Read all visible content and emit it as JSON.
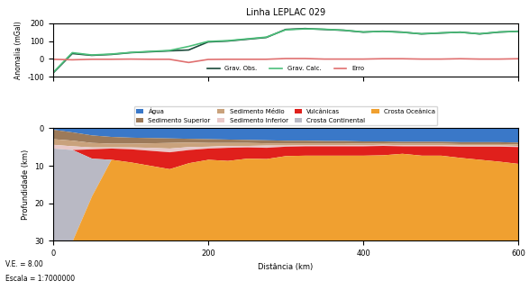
{
  "chart_data": [
    {
      "type": "line",
      "title": "Linha LEPLAC 029",
      "y_label": "Anomalia (mGal)",
      "x": [
        0,
        25,
        50,
        75,
        100,
        125,
        150,
        175,
        200,
        225,
        250,
        275,
        300,
        325,
        350,
        375,
        400,
        425,
        450,
        475,
        500,
        525,
        550,
        575,
        600
      ],
      "xlim": [
        0,
        600
      ],
      "xticks": [
        0,
        200,
        400,
        600
      ],
      "ylim": [
        -100,
        200
      ],
      "yticks": [
        -100,
        0,
        100,
        200
      ],
      "tick_labels": "y",
      "legend": "lower center",
      "series": [
        {
          "name": "Grav. Obs.",
          "color": "#1a4a3a",
          "values": [
            -80,
            30,
            20,
            25,
            35,
            40,
            45,
            50,
            95,
            100,
            110,
            120,
            165,
            170,
            165,
            160,
            150,
            155,
            150,
            140,
            145,
            150,
            140,
            150,
            155
          ]
        },
        {
          "name": "Grav. Calc.",
          "color": "#4cbf7a",
          "values": [
            -78,
            35,
            22,
            27,
            36,
            42,
            47,
            70,
            98,
            102,
            112,
            122,
            163,
            168,
            166,
            161,
            151,
            154,
            149,
            141,
            146,
            149,
            141,
            151,
            154
          ]
        },
        {
          "name": "Erro",
          "color": "#e07070",
          "values": [
            -2,
            -5,
            -2,
            -2,
            -1,
            -2,
            -2,
            -20,
            -3,
            -2,
            -2,
            -2,
            2,
            2,
            -1,
            -1,
            -1,
            1,
            1,
            -1,
            -1,
            1,
            -1,
            -1,
            1
          ]
        }
      ]
    },
    {
      "type": "area",
      "stacked": true,
      "x_label": "Distância (km)",
      "y_label": "Profundidade (km)",
      "annotations": [
        "V.E. = 8.00",
        "Escala = 1:7000000"
      ],
      "x": [
        0,
        25,
        50,
        75,
        100,
        125,
        150,
        175,
        200,
        225,
        250,
        275,
        300,
        325,
        350,
        375,
        400,
        425,
        450,
        475,
        500,
        525,
        550,
        575,
        600
      ],
      "xlim": [
        0,
        600
      ],
      "xticks": [
        0,
        200,
        400,
        600
      ],
      "ylim": [
        30,
        0
      ],
      "yticks": [
        0,
        10,
        20,
        30
      ],
      "legend": "lower center",
      "series": [
        {
          "name": "Água",
          "color": "#3a78c8",
          "values": [
            0.3,
            1.0,
            1.8,
            2.2,
            2.4,
            2.5,
            2.6,
            2.7,
            2.8,
            2.9,
            3.0,
            3.1,
            3.2,
            3.2,
            3.3,
            3.3,
            3.4,
            3.4,
            3.5,
            3.5,
            3.5,
            3.6,
            3.6,
            3.6,
            3.7
          ]
        },
        {
          "name": "Sedimento Superior",
          "color": "#9c7a5a",
          "values": [
            2.5,
            2.2,
            2.0,
            1.8,
            1.6,
            1.4,
            1.2,
            1.0,
            1.0,
            0.9,
            0.8,
            0.8,
            0.7,
            0.7,
            0.6,
            0.6,
            0.6,
            0.5,
            0.5,
            0.5,
            0.5,
            0.5,
            0.5,
            0.5,
            0.5
          ]
        },
        {
          "name": "Sedimento Médio",
          "color": "#c9a27c",
          "values": [
            1.5,
            1.5,
            1.2,
            1.0,
            1.0,
            1.2,
            1.5,
            1.2,
            1.0,
            0.8,
            0.8,
            0.6,
            0.6,
            0.5,
            0.5,
            0.5,
            0.4,
            0.4,
            0.4,
            0.4,
            0.4,
            0.4,
            0.4,
            0.4,
            0.4
          ]
        },
        {
          "name": "Sedimento Inferior",
          "color": "#e8c8c8",
          "values": [
            1.0,
            1.0,
            0.5,
            0.3,
            0.5,
            0.8,
            1.0,
            0.8,
            0.5,
            0.5,
            0.4,
            0.6,
            0.3,
            0.3,
            0.3,
            0.3,
            0.3,
            0.3,
            0.3,
            0.3,
            0.3,
            0.3,
            0.3,
            0.3,
            0.3
          ]
        },
        {
          "name": "Vulcânicas",
          "color": "#e0201c",
          "values": [
            0,
            0,
            2.5,
            3.0,
            3.5,
            4.0,
            4.5,
            3.5,
            3.0,
            3.5,
            3.0,
            3.0,
            2.5,
            2.5,
            2.5,
            2.5,
            2.5,
            2.5,
            2.0,
            2.5,
            2.5,
            3.0,
            3.5,
            4.0,
            4.5
          ]
        },
        {
          "name": "Crosta Continental",
          "color": "#b9b9c4",
          "values": [
            24.7,
            24.3,
            10.0,
            0,
            0,
            0,
            0,
            0,
            0,
            0,
            0,
            0,
            0,
            0,
            0,
            0,
            0,
            0,
            0,
            0,
            0,
            0,
            0,
            0,
            0
          ]
        },
        {
          "name": "Crosta Oceânica",
          "color": "#f0a030",
          "values": [
            0,
            0,
            12.0,
            21.7,
            21.0,
            20.1,
            19.2,
            20.8,
            21.7,
            21.4,
            22.0,
            21.9,
            22.7,
            22.8,
            22.8,
            22.8,
            22.8,
            22.9,
            23.3,
            22.8,
            22.8,
            22.2,
            21.7,
            21.2,
            20.6
          ]
        }
      ]
    }
  ]
}
